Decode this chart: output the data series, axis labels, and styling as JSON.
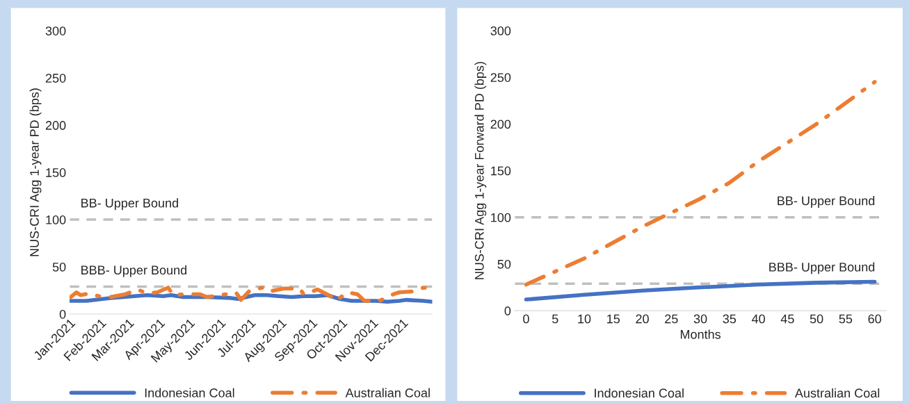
{
  "chart_data": [
    {
      "type": "line",
      "ylabel": "NUS-CRI Agg 1-year PD (bps)",
      "ylim": [
        0,
        300
      ],
      "yticks": [
        0,
        50,
        100,
        150,
        200,
        250,
        300
      ],
      "xlim": [
        "2021-01-01",
        "2021-12-31"
      ],
      "xticks": [
        {
          "value": "2021-01-01",
          "label": "Jan-2021"
        },
        {
          "value": "2021-02-01",
          "label": "Feb-2021"
        },
        {
          "value": "2021-03-01",
          "label": "Mar-2021"
        },
        {
          "value": "2021-04-01",
          "label": "Apr-2021"
        },
        {
          "value": "2021-05-01",
          "label": "May-2021"
        },
        {
          "value": "2021-06-01",
          "label": "Jun-2021"
        },
        {
          "value": "2021-07-01",
          "label": "Jul-2021"
        },
        {
          "value": "2021-08-01",
          "label": "Aug-2021"
        },
        {
          "value": "2021-09-01",
          "label": "Sep-2021"
        },
        {
          "value": "2021-10-01",
          "label": "Oct-2021"
        },
        {
          "value": "2021-11-01",
          "label": "Nov-2021"
        },
        {
          "value": "2021-12-01",
          "label": "Dec-2021"
        }
      ],
      "series": [
        {
          "name": "Indonesian Coal",
          "color": "#4472c4",
          "line_style": "solid",
          "x": [
            "2021-01-01",
            "2021-01-18",
            "2021-02-11",
            "2021-03-07",
            "2021-03-20",
            "2021-04-05",
            "2021-04-13",
            "2021-04-25",
            "2021-05-19",
            "2021-06-12",
            "2021-06-19",
            "2021-07-06",
            "2021-07-18",
            "2021-07-30",
            "2021-08-12",
            "2021-08-24",
            "2021-09-05",
            "2021-09-17",
            "2021-09-29",
            "2021-10-11",
            "2021-11-04",
            "2021-11-16",
            "2021-11-28",
            "2021-12-05",
            "2021-12-22",
            "2021-12-31"
          ],
          "values": [
            14,
            14,
            17,
            19,
            20,
            19,
            20,
            18,
            18,
            17,
            16,
            20,
            20,
            19,
            18,
            19,
            19,
            20,
            16,
            14,
            14,
            13,
            14,
            15,
            14,
            13
          ]
        },
        {
          "name": "Australian Coal",
          "color": "#ed7d31",
          "line_style": "dashdot",
          "x": [
            "2021-01-01",
            "2021-01-08",
            "2021-01-12",
            "2021-01-21",
            "2021-01-30",
            "2021-02-11",
            "2021-02-26",
            "2021-03-10",
            "2021-03-20",
            "2021-03-30",
            "2021-04-10",
            "2021-04-15",
            "2021-04-26",
            "2021-05-12",
            "2021-05-19",
            "2021-06-02",
            "2021-06-17",
            "2021-06-22",
            "2021-07-01",
            "2021-07-14",
            "2021-07-21",
            "2021-08-04",
            "2021-08-20",
            "2021-08-24",
            "2021-09-07",
            "2021-09-20",
            "2021-09-25",
            "2021-10-07",
            "2021-10-17",
            "2021-10-24",
            "2021-11-08",
            "2021-11-22",
            "2021-11-28",
            "2021-12-12",
            "2021-12-22",
            "2021-12-31"
          ],
          "values": [
            17,
            23,
            20,
            22,
            19,
            18,
            21,
            26,
            22,
            23,
            28,
            20,
            21,
            21,
            18,
            20,
            23,
            15,
            25,
            28,
            24,
            27,
            27,
            21,
            26,
            19,
            14,
            23,
            21,
            14,
            14,
            21,
            23,
            24,
            28,
            27
          ]
        }
      ],
      "ref_lines": [
        {
          "axis": "y",
          "value": 100,
          "label": "BB- Upper Bound",
          "color": "#bfbfbf",
          "line_style": "dashed"
        },
        {
          "axis": "y",
          "value": 29,
          "label": "BBB- Upper Bound",
          "color": "#bfbfbf",
          "line_style": "dashed"
        }
      ],
      "grid": false,
      "legend": "bottom"
    },
    {
      "type": "line",
      "xlabel": "Months",
      "ylabel": "NUS-CRI Agg 1-year Forward PD (bps)",
      "ylim": [
        0,
        300
      ],
      "yticks": [
        0,
        50,
        100,
        150,
        200,
        250,
        300
      ],
      "xlim": [
        -2,
        62
      ],
      "xticks": [
        0,
        5,
        10,
        15,
        20,
        25,
        30,
        35,
        40,
        45,
        50,
        55,
        60
      ],
      "series": [
        {
          "name": "Indonesian Coal",
          "color": "#4472c4",
          "line_style": "solid",
          "x": [
            0,
            10,
            20,
            30,
            40,
            50,
            60
          ],
          "values": [
            12,
            17,
            21.5,
            25,
            28,
            30,
            31
          ]
        },
        {
          "name": "Australian Coal",
          "color": "#ed7d31",
          "line_style": "dashdot",
          "x": [
            0,
            10,
            20,
            25,
            30,
            35,
            40,
            50,
            60
          ],
          "values": [
            28,
            56,
            90,
            105,
            120,
            137,
            160,
            200,
            245
          ]
        }
      ],
      "ref_lines": [
        {
          "axis": "y",
          "value": 100,
          "label": "BB- Upper Bound",
          "color": "#bfbfbf",
          "line_style": "dashed"
        },
        {
          "axis": "y",
          "value": 29,
          "label": "BBB- Upper Bound",
          "color": "#bfbfbf",
          "line_style": "dashed"
        }
      ],
      "grid": false,
      "legend": "bottom"
    }
  ]
}
